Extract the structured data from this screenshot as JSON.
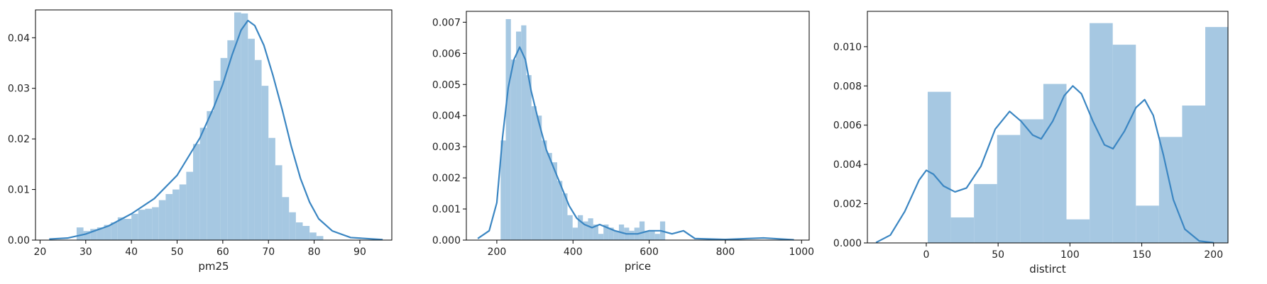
{
  "colors": {
    "bar": "#a6c8e2",
    "kde": "#3b86c2",
    "frame": "#000000"
  },
  "chart_data": [
    {
      "type": "histogram+kde",
      "xlabel": "pm25",
      "ylabel": "",
      "xlim": [
        19,
        97
      ],
      "ylim": [
        0,
        0.0455
      ],
      "xticks": [
        20,
        30,
        40,
        50,
        60,
        70,
        80,
        90
      ],
      "xtick_labels": [
        "20",
        "30",
        "40",
        "50",
        "60",
        "70",
        "80",
        "90"
      ],
      "yticks": [
        0,
        0.01,
        0.02,
        0.03,
        0.04
      ],
      "ytick_labels": [
        "0.00",
        "0.01",
        "0.02",
        "0.03",
        "0.04"
      ],
      "bin_start": 28,
      "bin_width": 1.5,
      "bin_heights": [
        0.0025,
        0.0018,
        0.0022,
        0.0025,
        0.003,
        0.0035,
        0.0045,
        0.0042,
        0.0052,
        0.006,
        0.0062,
        0.0065,
        0.0079,
        0.0091,
        0.01,
        0.011,
        0.0135,
        0.019,
        0.0222,
        0.0255,
        0.0315,
        0.036,
        0.0395,
        0.045,
        0.0448,
        0.0398,
        0.0356,
        0.0305,
        0.0202,
        0.0148,
        0.0085,
        0.0055,
        0.0035,
        0.0028,
        0.0015,
        0.0008
      ],
      "kde": [
        [
          22,
          0.0002
        ],
        [
          26,
          0.0004
        ],
        [
          30,
          0.0012
        ],
        [
          35,
          0.0028
        ],
        [
          40,
          0.0052
        ],
        [
          45,
          0.0082
        ],
        [
          50,
          0.0128
        ],
        [
          55,
          0.0202
        ],
        [
          58,
          0.0262
        ],
        [
          60,
          0.0308
        ],
        [
          62,
          0.0365
        ],
        [
          64,
          0.0415
        ],
        [
          65.5,
          0.0434
        ],
        [
          67,
          0.0424
        ],
        [
          69,
          0.0385
        ],
        [
          71,
          0.0325
        ],
        [
          73,
          0.0258
        ],
        [
          75,
          0.0185
        ],
        [
          77,
          0.0122
        ],
        [
          79,
          0.0075
        ],
        [
          81,
          0.0042
        ],
        [
          84,
          0.0018
        ],
        [
          88,
          0.0005
        ],
        [
          95,
          0.0001
        ]
      ]
    },
    {
      "type": "histogram+kde",
      "xlabel": "price",
      "ylabel": "",
      "xlim": [
        120,
        1020
      ],
      "ylim": [
        0,
        0.00735
      ],
      "xticks": [
        200,
        400,
        600,
        800,
        1000
      ],
      "xtick_labels": [
        "200",
        "400",
        "600",
        "800",
        "1000"
      ],
      "yticks": [
        0,
        0.001,
        0.002,
        0.003,
        0.004,
        0.005,
        0.006,
        0.007
      ],
      "ytick_labels": [
        "0.000",
        "0.001",
        "0.002",
        "0.003",
        "0.004",
        "0.005",
        "0.006",
        "0.007"
      ],
      "bin_start": 210,
      "bin_width": 13.5,
      "bin_heights": [
        0.0032,
        0.0071,
        0.0058,
        0.0067,
        0.0069,
        0.0053,
        0.0043,
        0.004,
        0.0032,
        0.0028,
        0.0025,
        0.0019,
        0.0015,
        0.0008,
        0.0004,
        0.0008,
        0.0006,
        0.0007,
        0.0005,
        0.0002,
        0.0005,
        0.0004,
        0.0003,
        0.0005,
        0.0004,
        0.0003,
        0.0004,
        0.0006,
        0.0003,
        0.0003,
        0.0002,
        0.0006
      ],
      "kde": [
        [
          150,
          5e-05
        ],
        [
          180,
          0.0003
        ],
        [
          200,
          0.0012
        ],
        [
          215,
          0.0033
        ],
        [
          230,
          0.0049
        ],
        [
          245,
          0.0058
        ],
        [
          260,
          0.0062
        ],
        [
          275,
          0.0058
        ],
        [
          290,
          0.0048
        ],
        [
          310,
          0.0038
        ],
        [
          330,
          0.0029
        ],
        [
          350,
          0.0023
        ],
        [
          370,
          0.0017
        ],
        [
          390,
          0.0011
        ],
        [
          410,
          0.0007
        ],
        [
          430,
          0.0005
        ],
        [
          450,
          0.0004
        ],
        [
          470,
          0.0005
        ],
        [
          490,
          0.0004
        ],
        [
          510,
          0.0003
        ],
        [
          540,
          0.0002
        ],
        [
          570,
          0.0002
        ],
        [
          600,
          0.0003
        ],
        [
          630,
          0.0003
        ],
        [
          660,
          0.0002
        ],
        [
          690,
          0.0003
        ],
        [
          720,
          5e-05
        ],
        [
          800,
          2e-05
        ],
        [
          900,
          7e-05
        ],
        [
          980,
          1e-05
        ]
      ]
    },
    {
      "type": "histogram+kde",
      "xlabel": "distirct",
      "ylabel": "",
      "xlim": [
        -41,
        210
      ],
      "ylim": [
        0,
        0.0118
      ],
      "xticks": [
        0,
        50,
        100,
        150,
        200
      ],
      "xtick_labels": [
        "0",
        "50",
        "100",
        "150",
        "200"
      ],
      "yticks": [
        0,
        0.002,
        0.004,
        0.006,
        0.008,
        0.01
      ],
      "ytick_labels": [
        "0.000",
        "0.002",
        "0.004",
        "0.006",
        "0.008",
        "0.010"
      ],
      "bin_start": 1,
      "bin_width": 16.1,
      "bin_heights": [
        0.0077,
        0.0013,
        0.003,
        0.0055,
        0.0063,
        0.0081,
        0.0012,
        0.0112,
        0.0101,
        0.0019,
        0.0054,
        0.007,
        0.011
      ],
      "kde": [
        [
          -35,
          2e-05
        ],
        [
          -25,
          0.0004
        ],
        [
          -15,
          0.0016
        ],
        [
          -5,
          0.0032
        ],
        [
          0,
          0.0037
        ],
        [
          5,
          0.0035
        ],
        [
          12,
          0.0029
        ],
        [
          20,
          0.0026
        ],
        [
          28,
          0.0028
        ],
        [
          38,
          0.0039
        ],
        [
          48,
          0.0058
        ],
        [
          58,
          0.0067
        ],
        [
          66,
          0.0062
        ],
        [
          74,
          0.0055
        ],
        [
          80,
          0.0053
        ],
        [
          88,
          0.0062
        ],
        [
          96,
          0.0075
        ],
        [
          102,
          0.008
        ],
        [
          108,
          0.0076
        ],
        [
          116,
          0.0062
        ],
        [
          124,
          0.005
        ],
        [
          130,
          0.0048
        ],
        [
          138,
          0.0057
        ],
        [
          146,
          0.0069
        ],
        [
          152,
          0.0073
        ],
        [
          158,
          0.0065
        ],
        [
          165,
          0.0045
        ],
        [
          172,
          0.0022
        ],
        [
          180,
          0.0007
        ],
        [
          190,
          0.0001
        ],
        [
          200,
          1e-05
        ]
      ]
    }
  ]
}
